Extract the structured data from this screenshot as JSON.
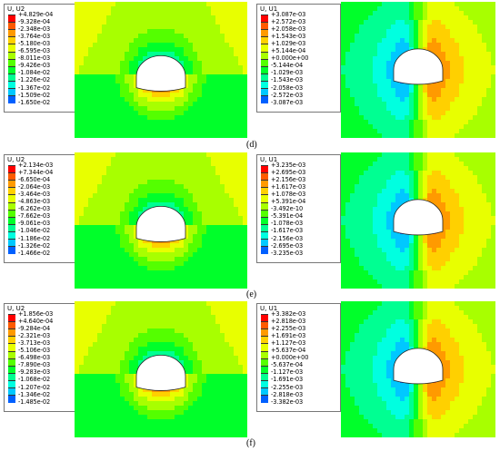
{
  "figure": {
    "captions": [
      "(d)",
      "(e)",
      "(f)"
    ],
    "panels": [
      {
        "id": "d-left",
        "title": "U, U2",
        "field": "u2",
        "labels": [
          "+4.829e-04",
          "-9.328e-04",
          "-2.348e-03",
          "-3.764e-03",
          "-5.180e-03",
          "-6.595e-03",
          "-8.011e-03",
          "-9.426e-03",
          "-1.084e-02",
          "-1.226e-02",
          "-1.367e-02",
          "-1.509e-02",
          "-1.650e-02"
        ]
      },
      {
        "id": "d-right",
        "title": "U, U1",
        "field": "u1",
        "labels": [
          "+3.087e-03",
          "+2.572e-03",
          "+2.058e-03",
          "+1.543e-03",
          "+1.029e-03",
          "+5.144e-04",
          "+0.000e+00",
          "-5.144e-04",
          "-1.029e-03",
          "-1.543e-03",
          "-2.058e-03",
          "-2.572e-03",
          "-3.087e-03"
        ]
      },
      {
        "id": "e-left",
        "title": "U, U2",
        "field": "u2",
        "labels": [
          "+2.134e-03",
          "+7.344e-04",
          "-6.650e-04",
          "-2.064e-03",
          "-3.464e-03",
          "-4.863e-03",
          "-6.262e-03",
          "-7.662e-03",
          "-9.061e-03",
          "-1.046e-02",
          "-1.186e-02",
          "-1.326e-02",
          "-1.466e-02"
        ]
      },
      {
        "id": "e-right",
        "title": "U, U1",
        "field": "u1",
        "labels": [
          "+3.235e-03",
          "+2.695e-03",
          "+2.156e-03",
          "+1.617e-03",
          "+1.078e-03",
          "+5.391e-04",
          "-3.492e-10",
          "-5.391e-04",
          "-1.078e-03",
          "-1.617e-03",
          "-2.156e-03",
          "-2.695e-03",
          "-3.235e-03"
        ]
      },
      {
        "id": "f-left",
        "title": "U, U2",
        "field": "u2",
        "labels": [
          "+1.856e-03",
          "+4.640e-04",
          "-9.284e-04",
          "-2.321e-03",
          "-3.713e-03",
          "-5.106e-03",
          "-6.498e-03",
          "-7.890e-03",
          "-9.283e-03",
          "-1.068e-02",
          "-1.207e-02",
          "-1.346e-02",
          "-1.485e-02"
        ]
      },
      {
        "id": "f-right",
        "title": "U, U1",
        "field": "u1",
        "labels": [
          "+3.382e-03",
          "+2.818e-03",
          "+2.255e-03",
          "+1.691e-03",
          "+1.127e-03",
          "+5.637e-04",
          "+0.000e+00",
          "-5.637e-04",
          "-1.127e-03",
          "-1.691e-03",
          "-2.255e-03",
          "-2.818e-03",
          "-3.382e-03"
        ]
      }
    ],
    "colormap": [
      "#ff0000",
      "#ff5a00",
      "#ff9a00",
      "#ffd000",
      "#e8ff00",
      "#a8ff00",
      "#54ff00",
      "#00ff2a",
      "#00ff92",
      "#00ffe0",
      "#00c8ff",
      "#0060ff",
      "#0000ff"
    ]
  }
}
